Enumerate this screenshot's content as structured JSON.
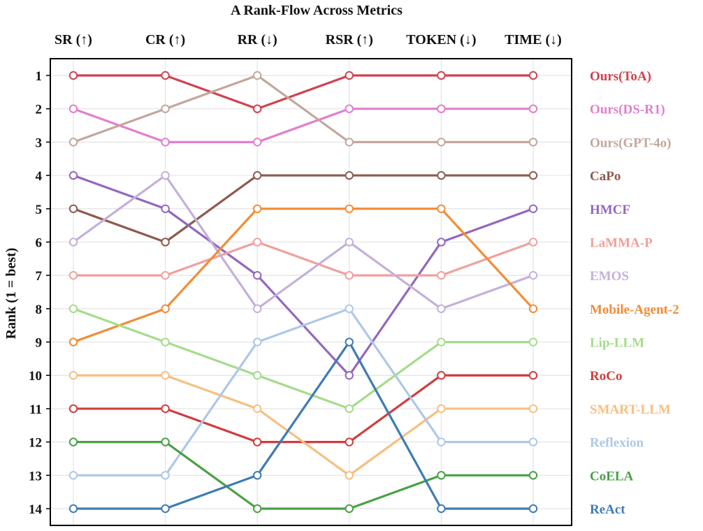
{
  "chart_data": {
    "type": "line",
    "title": "A Rank-Flow Across Metrics",
    "ylabel": "Rank (1 = best)",
    "categories": [
      "SR (↑)",
      "CR (↑)",
      "RR (↓)",
      "RSR (↑)",
      "TOKEN (↓)",
      "TIME (↓)"
    ],
    "yticks": [
      1,
      2,
      3,
      4,
      5,
      6,
      7,
      8,
      9,
      10,
      11,
      12,
      13,
      14
    ],
    "ylim": [
      1,
      14
    ],
    "y_inverted": true,
    "grid": true,
    "legend_placement": "right",
    "series": [
      {
        "name": "Ours(ToA)",
        "color": "#d0424f",
        "values": [
          1,
          1,
          2,
          1,
          1,
          1
        ]
      },
      {
        "name": "Ours(DS-R1)",
        "color": "#e07fcf",
        "values": [
          2,
          3,
          3,
          2,
          2,
          2
        ]
      },
      {
        "name": "Ours(GPT-4o)",
        "color": "#c2a79c",
        "values": [
          3,
          2,
          1,
          3,
          3,
          3
        ]
      },
      {
        "name": "CaPo",
        "color": "#8d5b4e",
        "values": [
          5,
          6,
          4,
          4,
          4,
          4
        ]
      },
      {
        "name": "HMCF",
        "color": "#9467bd",
        "values": [
          4,
          5,
          7,
          10,
          6,
          5
        ]
      },
      {
        "name": "LaMMA-P",
        "color": "#f0a09d",
        "values": [
          7,
          7,
          6,
          7,
          7,
          6
        ]
      },
      {
        "name": "EMOS",
        "color": "#c5b0d8",
        "values": [
          6,
          4,
          8,
          6,
          8,
          7
        ]
      },
      {
        "name": "Mobile-Agent-2",
        "color": "#f28c36",
        "values": [
          9,
          8,
          5,
          5,
          5,
          8
        ]
      },
      {
        "name": "Lip-LLM",
        "color": "#a5dc8a",
        "values": [
          8,
          9,
          10,
          11,
          9,
          9
        ]
      },
      {
        "name": "RoCo",
        "color": "#d03c3c",
        "values": [
          11,
          11,
          12,
          12,
          10,
          10
        ]
      },
      {
        "name": "SMART-LLM",
        "color": "#f7bf80",
        "values": [
          10,
          10,
          11,
          13,
          11,
          11
        ]
      },
      {
        "name": "Reflexion",
        "color": "#adc8e7",
        "values": [
          13,
          13,
          9,
          8,
          12,
          12
        ]
      },
      {
        "name": "CoELA",
        "color": "#4aa043",
        "values": [
          12,
          12,
          14,
          14,
          13,
          13
        ]
      },
      {
        "name": "ReAct",
        "color": "#3e7bb3",
        "values": [
          14,
          14,
          13,
          9,
          14,
          14
        ]
      }
    ],
    "legend_order": [
      "Ours(ToA)",
      "Ours(DS-R1)",
      "Ours(GPT-4o)",
      "CaPo",
      "HMCF",
      "LaMMA-P",
      "EMOS",
      "Mobile-Agent-2",
      "Lip-LLM",
      "RoCo",
      "SMART-LLM",
      "Reflexion",
      "CoELA",
      "ReAct"
    ]
  }
}
